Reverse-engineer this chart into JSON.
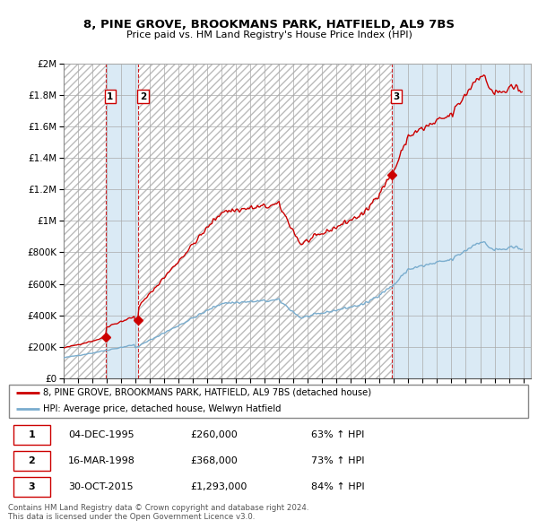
{
  "title1": "8, PINE GROVE, BROOKMANS PARK, HATFIELD, AL9 7BS",
  "title2": "Price paid vs. HM Land Registry's House Price Index (HPI)",
  "ylabel_ticks": [
    "£0",
    "£200K",
    "£400K",
    "£600K",
    "£800K",
    "£1M",
    "£1.2M",
    "£1.4M",
    "£1.6M",
    "£1.8M",
    "£2M"
  ],
  "ylabel_values": [
    0,
    200000,
    400000,
    600000,
    800000,
    1000000,
    1200000,
    1400000,
    1600000,
    1800000,
    2000000
  ],
  "xmin": 1993.0,
  "xmax": 2025.5,
  "ymin": 0,
  "ymax": 2000000,
  "sale_dates": [
    1995.92,
    1998.21,
    2015.83
  ],
  "sale_prices": [
    260000,
    368000,
    1293000
  ],
  "sale_labels": [
    "1",
    "2",
    "3"
  ],
  "hpi_line_color": "#7aadce",
  "sale_line_color": "#cc0000",
  "sale_dot_color": "#cc0000",
  "legend_line1": "8, PINE GROVE, BROOKMANS PARK, HATFIELD, AL9 7BS (detached house)",
  "legend_line2": "HPI: Average price, detached house, Welwyn Hatfield",
  "table_rows": [
    [
      "1",
      "04-DEC-1995",
      "£260,000",
      "63% ↑ HPI"
    ],
    [
      "2",
      "16-MAR-1998",
      "£368,000",
      "73% ↑ HPI"
    ],
    [
      "3",
      "30-OCT-2015",
      "£1,293,000",
      "84% ↑ HPI"
    ]
  ],
  "footnote": "Contains HM Land Registry data © Crown copyright and database right 2024.\nThis data is licensed under the Open Government Licence v3.0.",
  "hatch_color": "#cccccc",
  "blue_color": "#daeaf5"
}
